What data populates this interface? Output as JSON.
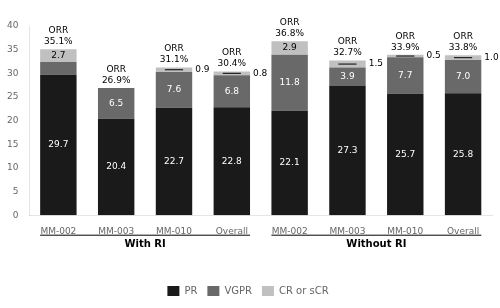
{
  "chart_data": {
    "type": "bar",
    "stacked": true,
    "categories": [
      "MM-002",
      "MM-003",
      "MM-010",
      "Overall",
      "MM-002",
      "MM-003",
      "MM-010",
      "Overall"
    ],
    "groups": [
      {
        "name": "With RI",
        "count": 4
      },
      {
        "name": "Without RI",
        "count": 4
      }
    ],
    "series": [
      {
        "name": "PR",
        "color": "#1a1a1a",
        "values": [
          29.7,
          20.4,
          22.7,
          22.8,
          22.1,
          27.3,
          25.7,
          25.8
        ],
        "data_labels": true
      },
      {
        "name": "VGPR",
        "color": "#696969",
        "values": [
          2.7,
          6.5,
          7.6,
          6.8,
          11.8,
          3.9,
          7.7,
          7.0
        ],
        "data_labels": true,
        "value_labels": [
          null,
          "6.5",
          "7.6",
          "6.8",
          "11.8",
          "3.9",
          "7.7",
          "7.0"
        ]
      },
      {
        "name": "CR or sCR",
        "color": "#c0c0c0",
        "values": [
          2.7,
          0.0,
          0.9,
          0.8,
          2.9,
          1.5,
          0.5,
          1.0
        ],
        "data_labels": true,
        "value_labels": [
          "2.7",
          null,
          "0.9",
          "0.8",
          "2.9",
          "1.5",
          "0.5",
          "1.0"
        ]
      }
    ],
    "annotations": [
      {
        "text": "ORR",
        "values": [
          35.1,
          26.9,
          31.1,
          30.4,
          36.8,
          32.7,
          33.9,
          33.8
        ],
        "value_labels": [
          "35.1%",
          "26.9%",
          "31.1%",
          "30.4%",
          "36.8%",
          "32.7%",
          "33.9%",
          "33.8%"
        ]
      }
    ],
    "ylim": [
      0,
      40
    ],
    "yticks": [
      0,
      5,
      10,
      15,
      20,
      25,
      30,
      35,
      40
    ],
    "grid": false,
    "legend": "bottom"
  }
}
